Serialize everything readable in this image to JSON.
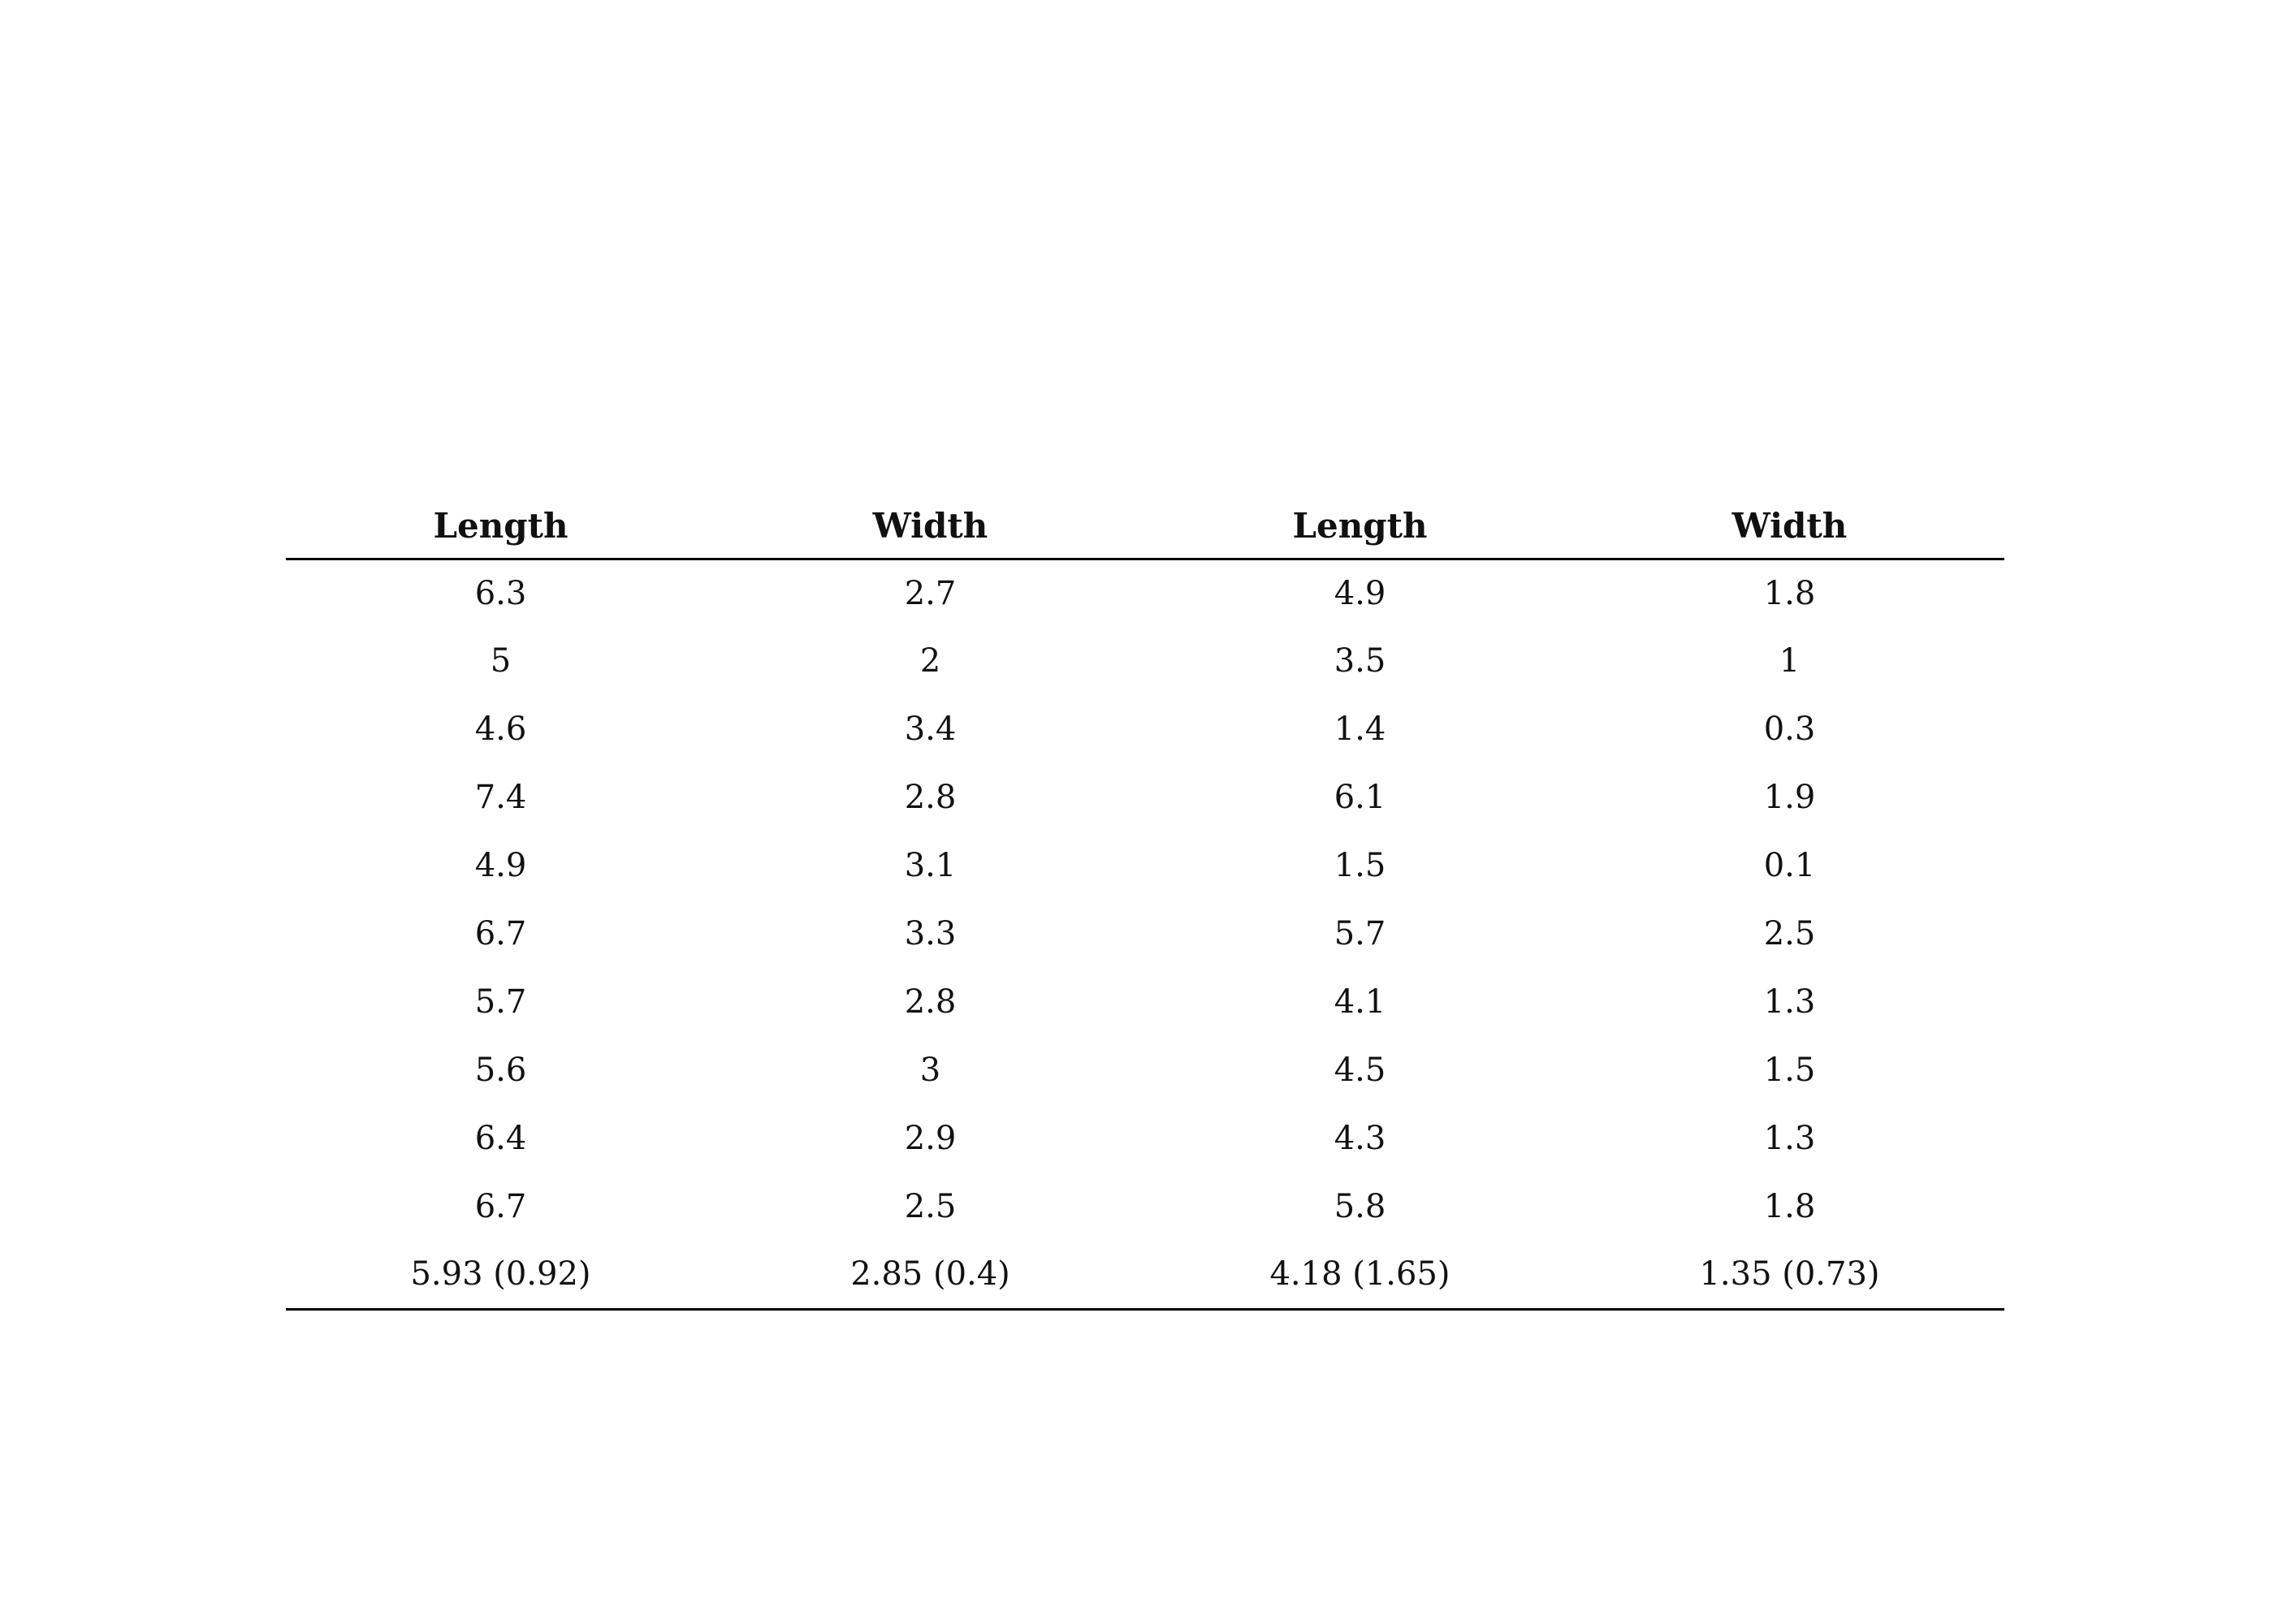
{
  "table": {
    "headers": [
      "Length",
      "Width",
      "Length",
      "Width"
    ],
    "rows": [
      [
        "6.3",
        "2.7",
        "4.9",
        "1.8"
      ],
      [
        "5",
        "2",
        "3.5",
        "1"
      ],
      [
        "4.6",
        "3.4",
        "1.4",
        "0.3"
      ],
      [
        "7.4",
        "2.8",
        "6.1",
        "1.9"
      ],
      [
        "4.9",
        "3.1",
        "1.5",
        "0.1"
      ],
      [
        "6.7",
        "3.3",
        "5.7",
        "2.5"
      ],
      [
        "5.7",
        "2.8",
        "4.1",
        "1.3"
      ],
      [
        "5.6",
        "3",
        "4.5",
        "1.5"
      ],
      [
        "6.4",
        "2.9",
        "4.3",
        "1.3"
      ],
      [
        "6.7",
        "2.5",
        "5.8",
        "1.8"
      ],
      [
        "5.93 (0.92)",
        "2.85 (0.4)",
        "4.18 (1.65)",
        "1.35 (0.73)"
      ]
    ]
  }
}
